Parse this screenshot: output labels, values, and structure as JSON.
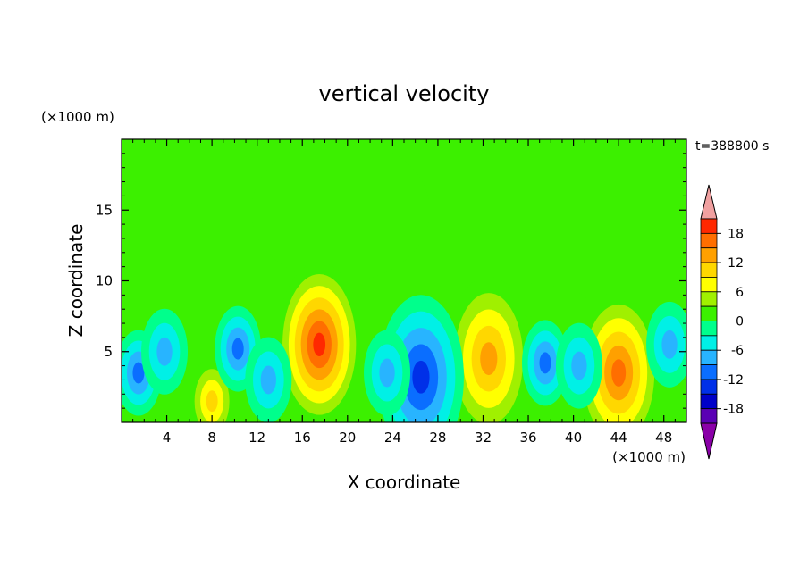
{
  "chart_data": {
    "type": "heatmap",
    "title": "vertical velocity",
    "xlabel": "X coordinate",
    "ylabel": "Z coordinate",
    "x_unit": "(×1000 m)",
    "y_unit": "(×1000 m)",
    "time_label": "t=388800 s",
    "xlim": [
      0,
      50
    ],
    "ylim": [
      0,
      20
    ],
    "x_ticks": [
      "4",
      "8",
      "12",
      "16",
      "20",
      "24",
      "28",
      "32",
      "36",
      "40",
      "44",
      "48"
    ],
    "y_ticks": [
      "5",
      "10",
      "15"
    ],
    "colorbar": {
      "levels": [
        -21,
        -18,
        -15,
        -12,
        -9,
        -6,
        -3,
        0,
        3,
        6,
        9,
        12,
        15,
        18,
        21
      ],
      "tick_labels": [
        "18",
        "12",
        "6",
        "0",
        "-6",
        "-12",
        "-18"
      ],
      "colors": [
        "#8a00a8",
        "#5a00b4",
        "#0000c8",
        "#0030e8",
        "#0a6eff",
        "#28b4ff",
        "#00f0e6",
        "#00ff8c",
        "#3cf000",
        "#a0f000",
        "#ffff00",
        "#ffd700",
        "#ffa000",
        "#ff6e00",
        "#ff2800",
        "#f0a0a0"
      ]
    },
    "features": [
      {
        "x": 17.5,
        "z": 5.5,
        "peak": 20
      },
      {
        "x": 32.5,
        "z": 4.5,
        "peak": 13
      },
      {
        "x": 44,
        "z": 3.5,
        "peak": 15
      },
      {
        "x": 8,
        "z": 1.5,
        "peak": 9
      },
      {
        "x": 26.5,
        "z": 3.2,
        "peak": -12
      },
      {
        "x": 1.5,
        "z": 3.5,
        "peak": -10
      },
      {
        "x": 10.3,
        "z": 5.2,
        "peak": -10
      },
      {
        "x": 37.5,
        "z": 4.2,
        "peak": -10
      },
      {
        "x": 48.5,
        "z": 5.5,
        "peak": -8
      },
      {
        "x": 23.5,
        "z": 3.5,
        "peak": -8
      },
      {
        "x": 3.8,
        "z": 5,
        "peak": -7
      },
      {
        "x": 13,
        "z": 3,
        "peak": -6
      },
      {
        "x": 40.5,
        "z": 4,
        "peak": -6
      }
    ]
  }
}
